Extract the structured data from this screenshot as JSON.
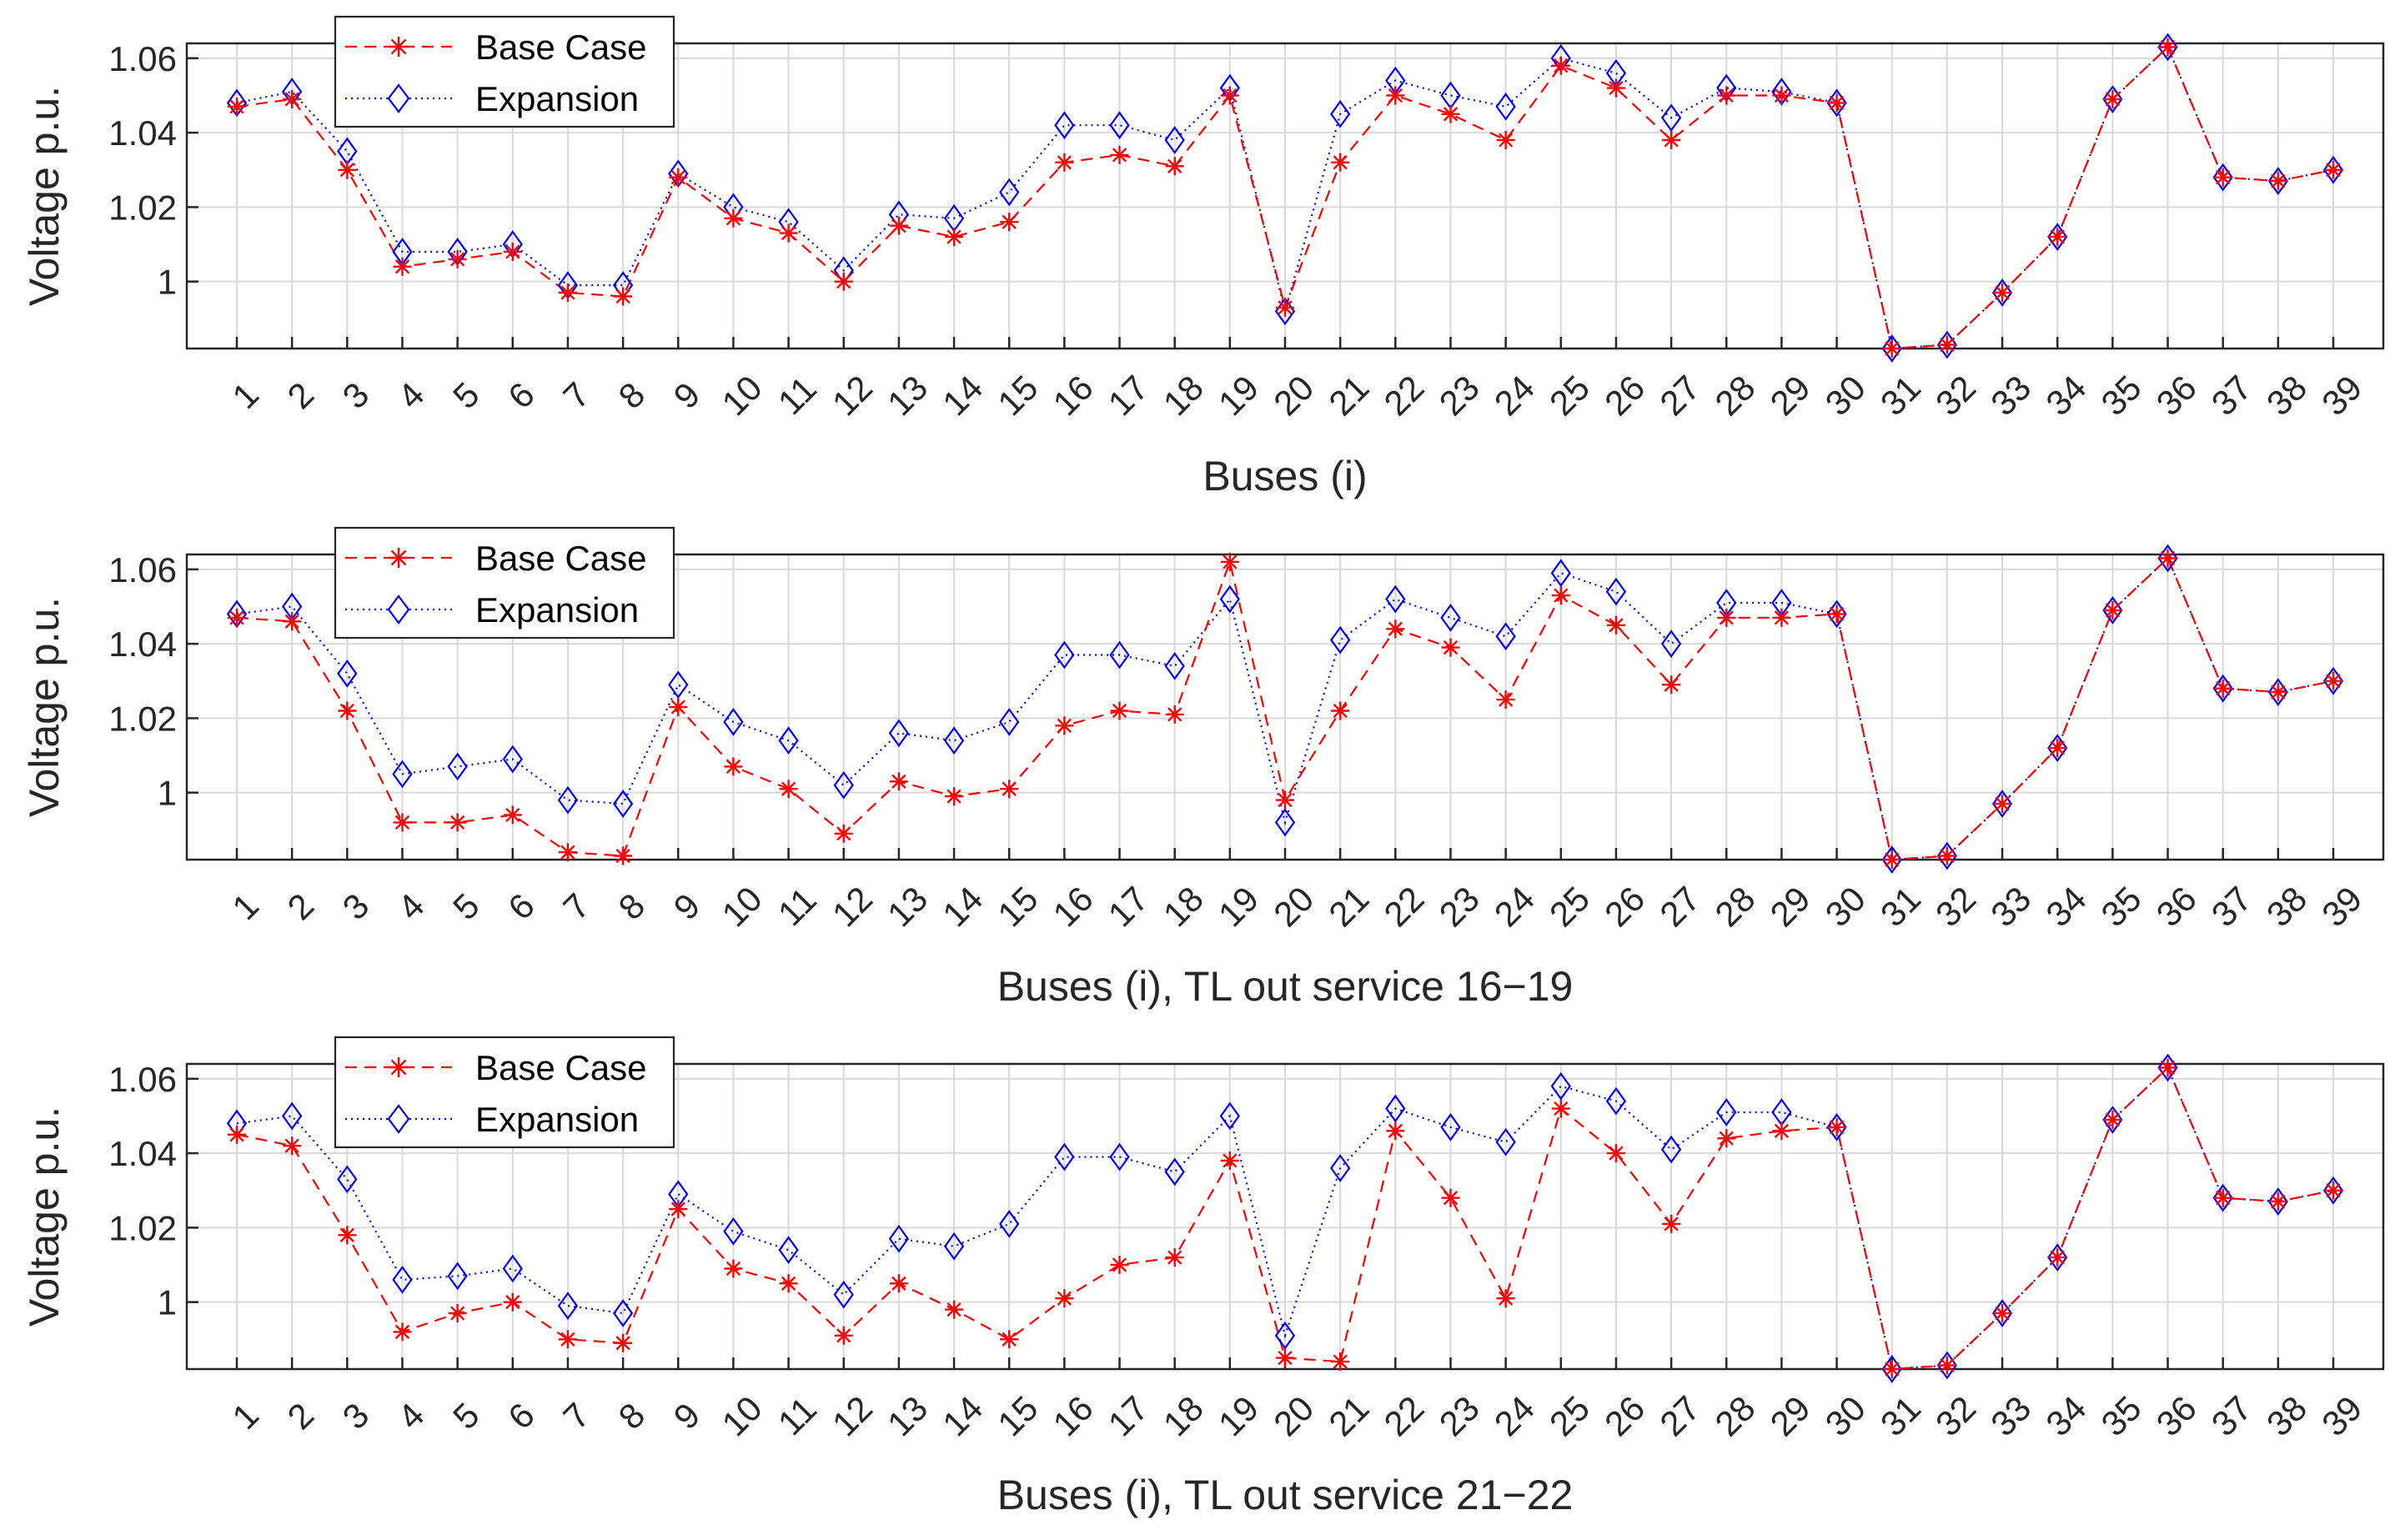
{
  "figure": {
    "legend": {
      "base_label": "Base Case",
      "exp_label": "Expansion",
      "location": "top-left"
    },
    "colors": {
      "base": "#ff0000",
      "expansion": "#0000ff",
      "grid": "#d9d9d9",
      "axes": "#262626"
    }
  },
  "chart_data": [
    {
      "type": "line",
      "title": "",
      "xlabel": "Buses (i)",
      "ylabel": "Voltage p.u.",
      "ylim": [
        0.982,
        1.064
      ],
      "yticks": [
        1,
        1.02,
        1.04,
        1.06
      ],
      "ytick_labels": [
        "1",
        "1.02",
        "1.04",
        "1.06"
      ],
      "categories": [
        "1",
        "2",
        "3",
        "4",
        "5",
        "6",
        "7",
        "8",
        "9",
        "10",
        "11",
        "12",
        "13",
        "14",
        "15",
        "16",
        "17",
        "18",
        "19",
        "20",
        "21",
        "22",
        "23",
        "24",
        "25",
        "26",
        "27",
        "28",
        "29",
        "30",
        "31",
        "32",
        "33",
        "34",
        "35",
        "36",
        "37",
        "38",
        "39"
      ],
      "series": [
        {
          "name": "Base Case",
          "style": "dashed-star",
          "values": [
            1.047,
            1.049,
            1.03,
            1.004,
            1.006,
            1.008,
            0.997,
            0.996,
            1.028,
            1.017,
            1.013,
            1.0,
            1.015,
            1.012,
            1.016,
            1.032,
            1.034,
            1.031,
            1.05,
            0.993,
            1.032,
            1.05,
            1.045,
            1.038,
            1.058,
            1.052,
            1.038,
            1.05,
            1.05,
            1.048,
            0.982,
            0.983,
            0.997,
            1.012,
            1.049,
            1.063,
            1.028,
            1.027,
            1.03
          ]
        },
        {
          "name": "Expansion",
          "style": "dotted-diamond",
          "values": [
            1.048,
            1.051,
            1.035,
            1.008,
            1.008,
            1.01,
            0.999,
            0.999,
            1.029,
            1.02,
            1.016,
            1.003,
            1.018,
            1.017,
            1.024,
            1.042,
            1.042,
            1.038,
            1.052,
            0.992,
            1.045,
            1.054,
            1.05,
            1.047,
            1.06,
            1.056,
            1.044,
            1.052,
            1.051,
            1.048,
            0.982,
            0.983,
            0.997,
            1.012,
            1.049,
            1.063,
            1.028,
            1.027,
            1.03
          ]
        }
      ]
    },
    {
      "type": "line",
      "title": "",
      "xlabel": "Buses (i), TL out service 16−19",
      "ylabel": "Voltage p.u.",
      "ylim": [
        0.982,
        1.064
      ],
      "yticks": [
        1,
        1.02,
        1.04,
        1.06
      ],
      "ytick_labels": [
        "1",
        "1.02",
        "1.04",
        "1.06"
      ],
      "categories": [
        "1",
        "2",
        "3",
        "4",
        "5",
        "6",
        "7",
        "8",
        "9",
        "10",
        "11",
        "12",
        "13",
        "14",
        "15",
        "16",
        "17",
        "18",
        "19",
        "20",
        "21",
        "22",
        "23",
        "24",
        "25",
        "26",
        "27",
        "28",
        "29",
        "30",
        "31",
        "32",
        "33",
        "34",
        "35",
        "36",
        "37",
        "38",
        "39"
      ],
      "series": [
        {
          "name": "Base Case",
          "style": "dashed-star",
          "values": [
            1.047,
            1.046,
            1.022,
            0.992,
            0.992,
            0.994,
            0.984,
            0.983,
            1.023,
            1.007,
            1.001,
            0.989,
            1.003,
            0.999,
            1.001,
            1.018,
            1.022,
            1.021,
            1.062,
            0.998,
            1.022,
            1.044,
            1.039,
            1.025,
            1.053,
            1.045,
            1.029,
            1.047,
            1.047,
            1.048,
            0.982,
            0.983,
            0.997,
            1.012,
            1.049,
            1.063,
            1.028,
            1.027,
            1.03
          ]
        },
        {
          "name": "Expansion",
          "style": "dotted-diamond",
          "values": [
            1.048,
            1.05,
            1.032,
            1.005,
            1.007,
            1.009,
            0.998,
            0.997,
            1.029,
            1.019,
            1.014,
            1.002,
            1.016,
            1.014,
            1.019,
            1.037,
            1.037,
            1.034,
            1.052,
            0.992,
            1.041,
            1.052,
            1.047,
            1.042,
            1.059,
            1.054,
            1.04,
            1.051,
            1.051,
            1.048,
            0.982,
            0.983,
            0.997,
            1.012,
            1.049,
            1.063,
            1.028,
            1.027,
            1.03
          ]
        }
      ]
    },
    {
      "type": "line",
      "title": "",
      "xlabel": "Buses (i), TL out service 21−22",
      "ylabel": "Voltage p.u.",
      "ylim": [
        0.982,
        1.064
      ],
      "yticks": [
        1,
        1.02,
        1.04,
        1.06
      ],
      "ytick_labels": [
        "1",
        "1.02",
        "1.04",
        "1.06"
      ],
      "categories": [
        "1",
        "2",
        "3",
        "4",
        "5",
        "6",
        "7",
        "8",
        "9",
        "10",
        "11",
        "12",
        "13",
        "14",
        "15",
        "16",
        "17",
        "18",
        "19",
        "20",
        "21",
        "22",
        "23",
        "24",
        "25",
        "26",
        "27",
        "28",
        "29",
        "30",
        "31",
        "32",
        "33",
        "34",
        "35",
        "36",
        "37",
        "38",
        "39"
      ],
      "series": [
        {
          "name": "Base Case",
          "style": "dashed-star",
          "values": [
            1.045,
            1.042,
            1.018,
            0.992,
            0.997,
            1.0,
            0.99,
            0.989,
            1.025,
            1.009,
            1.005,
            0.991,
            1.005,
            0.998,
            0.99,
            1.001,
            1.01,
            1.012,
            1.038,
            0.985,
            0.984,
            1.046,
            1.028,
            1.001,
            1.052,
            1.04,
            1.021,
            1.044,
            1.046,
            1.047,
            0.982,
            0.983,
            0.997,
            1.012,
            1.049,
            1.063,
            1.028,
            1.027,
            1.03
          ]
        },
        {
          "name": "Expansion",
          "style": "dotted-diamond",
          "values": [
            1.048,
            1.05,
            1.033,
            1.006,
            1.007,
            1.009,
            0.999,
            0.997,
            1.029,
            1.019,
            1.014,
            1.002,
            1.017,
            1.015,
            1.021,
            1.039,
            1.039,
            1.035,
            1.05,
            0.991,
            1.036,
            1.052,
            1.047,
            1.043,
            1.058,
            1.054,
            1.041,
            1.051,
            1.051,
            1.047,
            0.982,
            0.983,
            0.997,
            1.012,
            1.049,
            1.063,
            1.028,
            1.027,
            1.03
          ]
        }
      ]
    }
  ]
}
